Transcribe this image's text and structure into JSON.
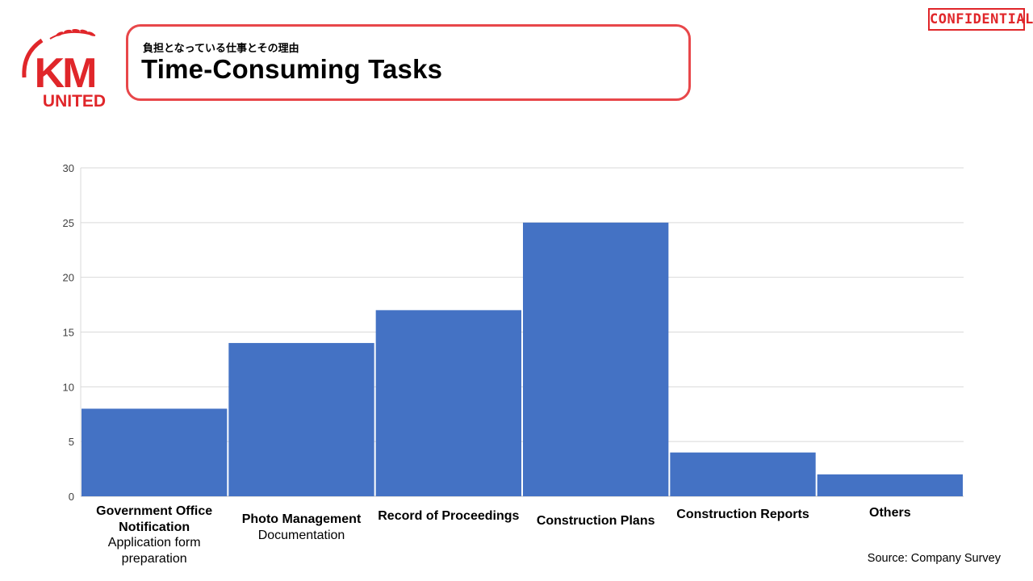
{
  "header": {
    "subtitle": "負担となっている仕事とその理由",
    "title": "Time-Consuming Tasks",
    "badge": "CONFIDENTIAL"
  },
  "logo": {
    "line1": "KM",
    "line2": "UNITED"
  },
  "colors": {
    "bar": "#4472c4",
    "accent_red": "#e8474a",
    "grid": "#d9d9d9"
  },
  "chart_data": {
    "type": "bar",
    "categories": [
      {
        "main": "Government Office Notification",
        "sub": "Application form preparation"
      },
      {
        "main": "Photo Management",
        "sub": "Documentation"
      },
      {
        "main": "Record of Proceedings",
        "sub": ""
      },
      {
        "main": "Construction Plans",
        "sub": ""
      },
      {
        "main": "Construction Reports",
        "sub": ""
      },
      {
        "main": "Others",
        "sub": ""
      }
    ],
    "values": [
      8,
      14,
      17,
      25,
      4,
      2
    ],
    "ylim": [
      0,
      30
    ],
    "yticks": [
      0,
      5,
      10,
      15,
      20,
      25,
      30
    ],
    "grid": true,
    "title": "",
    "xlabel": "",
    "ylabel": ""
  },
  "footer": {
    "source": "Source: Company Survey"
  }
}
